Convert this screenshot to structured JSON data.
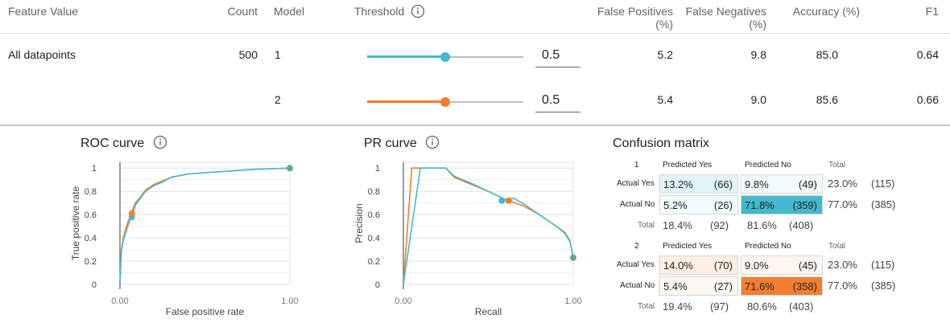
{
  "header": {
    "feature_value": "Feature Value",
    "count": "Count",
    "model": "Model",
    "threshold": "Threshold",
    "false_positives": "False Positives",
    "false_positives_unit": "(%)",
    "false_negatives": "False Negatives",
    "false_negatives_unit": "(%)",
    "accuracy": "Accuracy (%)",
    "f1": "F1"
  },
  "rows": [
    {
      "feature": "All datapoints",
      "count": "500",
      "model": "1",
      "threshold": "0.5",
      "threshold_fraction": 0.5,
      "fp": "5.2",
      "fn": "9.8",
      "accuracy": "85.0",
      "f1": "0.64"
    },
    {
      "feature": "",
      "count": "",
      "model": "2",
      "threshold": "0.5",
      "threshold_fraction": 0.5,
      "fp": "5.4",
      "fn": "9.0",
      "accuracy": "85.6",
      "f1": "0.66"
    }
  ],
  "colors": {
    "model1": "#44b9cd",
    "model2": "#f37e2f",
    "model1_light": "#e3f4f8",
    "model2_light": "#fdeee3",
    "overlap": "#5fa79a"
  },
  "roc": {
    "title": "ROC curve",
    "xlabel": "False positive rate",
    "ylabel": "True positive rate"
  },
  "pr": {
    "title": "PR curve",
    "xlabel": "Recall",
    "ylabel": "Precision"
  },
  "chart_data": [
    {
      "type": "line",
      "title": "ROC curve",
      "xlabel": "False positive rate",
      "ylabel": "True positive rate",
      "xlim": [
        0,
        1
      ],
      "ylim": [
        0,
        1.05
      ],
      "xticks": [
        "0.00",
        "1.00"
      ],
      "yticks": [
        "0",
        "0.2",
        "0.4",
        "0.6",
        "0.8",
        "1"
      ],
      "series": [
        {
          "name": "1",
          "x": [
            0,
            0.005,
            0.01,
            0.02,
            0.035,
            0.05,
            0.07,
            0.09,
            0.12,
            0.15,
            0.2,
            0.25,
            0.3,
            0.4,
            0.5,
            0.6,
            0.7,
            0.8,
            0.9,
            1.0
          ],
          "y": [
            0,
            0.2,
            0.3,
            0.38,
            0.45,
            0.52,
            0.58,
            0.68,
            0.74,
            0.8,
            0.85,
            0.88,
            0.92,
            0.95,
            0.96,
            0.97,
            0.98,
            0.99,
            0.995,
            1.0
          ]
        },
        {
          "name": "2",
          "x": [
            0,
            0.005,
            0.01,
            0.02,
            0.035,
            0.05,
            0.07,
            0.09,
            0.12,
            0.15,
            0.2,
            0.25,
            0.3,
            0.4,
            0.5,
            0.6,
            0.7,
            0.8,
            0.9,
            1.0
          ],
          "y": [
            0,
            0.22,
            0.31,
            0.4,
            0.48,
            0.55,
            0.62,
            0.7,
            0.75,
            0.81,
            0.86,
            0.89,
            0.92,
            0.95,
            0.96,
            0.97,
            0.98,
            0.99,
            0.995,
            1.0
          ]
        }
      ],
      "points": [
        {
          "series": "1",
          "x": 0.07,
          "y": 0.58
        },
        {
          "series": "2",
          "x": 0.07,
          "y": 0.61
        },
        {
          "series": "both",
          "x": 1.0,
          "y": 1.0
        }
      ]
    },
    {
      "type": "line",
      "title": "PR curve",
      "xlabel": "Recall",
      "ylabel": "Precision",
      "xlim": [
        0,
        1
      ],
      "ylim": [
        0,
        1.05
      ],
      "xticks": [
        "0.00",
        "1.00"
      ],
      "yticks": [
        "0",
        "0.2",
        "0.4",
        "0.6",
        "0.8",
        "1"
      ],
      "series": [
        {
          "name": "1",
          "x": [
            0.0,
            0.1,
            0.25,
            0.3,
            0.4,
            0.5,
            0.6,
            0.65,
            0.7,
            0.8,
            0.9,
            0.95,
            0.98,
            1.0
          ],
          "y": [
            0.0,
            1.0,
            1.0,
            0.93,
            0.87,
            0.8,
            0.73,
            0.74,
            0.7,
            0.6,
            0.5,
            0.44,
            0.37,
            0.23
          ]
        },
        {
          "name": "2",
          "x": [
            0.0,
            0.05,
            0.1,
            0.25,
            0.3,
            0.4,
            0.5,
            0.6,
            0.7,
            0.8,
            0.9,
            0.95,
            0.98,
            1.0
          ],
          "y": [
            0.0,
            1.0,
            1.0,
            1.0,
            0.92,
            0.86,
            0.8,
            0.73,
            0.68,
            0.6,
            0.5,
            0.45,
            0.38,
            0.23
          ]
        }
      ],
      "points": [
        {
          "series": "1",
          "x": 0.58,
          "y": 0.72
        },
        {
          "series": "2",
          "x": 0.62,
          "y": 0.72
        },
        {
          "series": "both",
          "x": 1.0,
          "y": 0.23
        }
      ]
    }
  ],
  "confusion": {
    "title": "Confusion matrix",
    "predicted_yes": "Predicted Yes",
    "predicted_no": "Predicted No",
    "total": "Total",
    "actual_yes": "Actual Yes",
    "actual_no": "Actual No",
    "models": [
      {
        "label": "1",
        "cells": [
          [
            {
              "pct": "13.2%",
              "cnt": "(66)"
            },
            {
              "pct": "9.8%",
              "cnt": "(49)"
            }
          ],
          [
            {
              "pct": "5.2%",
              "cnt": "(26)"
            },
            {
              "pct": "71.8%",
              "cnt": "(359)"
            }
          ]
        ],
        "row_totals": [
          {
            "pct": "23.0%",
            "cnt": "(115)"
          },
          {
            "pct": "77.0%",
            "cnt": "(385)"
          }
        ],
        "col_totals": [
          {
            "pct": "18.4%",
            "cnt": "(92)"
          },
          {
            "pct": "81.6%",
            "cnt": "(408)"
          }
        ]
      },
      {
        "label": "2",
        "cells": [
          [
            {
              "pct": "14.0%",
              "cnt": "(70)"
            },
            {
              "pct": "9.0%",
              "cnt": "(45)"
            }
          ],
          [
            {
              "pct": "5.4%",
              "cnt": "(27)"
            },
            {
              "pct": "71.6%",
              "cnt": "(358)"
            }
          ]
        ],
        "row_totals": [
          {
            "pct": "23.0%",
            "cnt": "(115)"
          },
          {
            "pct": "77.0%",
            "cnt": "(385)"
          }
        ],
        "col_totals": [
          {
            "pct": "19.4%",
            "cnt": "(97)"
          },
          {
            "pct": "80.6%",
            "cnt": "(403)"
          }
        ]
      }
    ]
  }
}
